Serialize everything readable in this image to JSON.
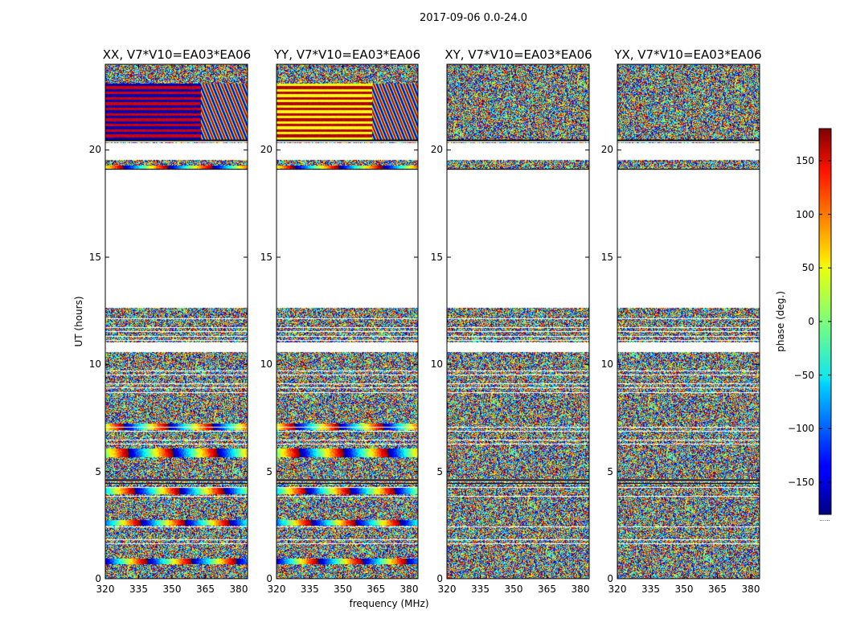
{
  "figure": {
    "suptitle": "2017-09-06 0.0-24.0",
    "colorbar_extra": "......"
  },
  "chart_data": [
    {
      "type": "heatmap",
      "title": "XX, V7*V10=EA03*EA06",
      "xlabel": "frequency (MHz)",
      "ylabel": "UT (hours)",
      "xlim": [
        320,
        384
      ],
      "ylim": [
        0,
        24
      ],
      "xticks": [
        "320",
        "335",
        "350",
        "365",
        "380"
      ],
      "yticks": [
        "0",
        "5",
        "10",
        "15",
        "20"
      ],
      "value_unit": "phase (deg.)",
      "vmin": -180,
      "vmax": 180,
      "data_gaps_hours": [
        [
          12.65,
          19.1
        ],
        [
          19.55,
          20.35
        ],
        [
          20.4,
          20.48
        ],
        [
          10.6,
          11.05
        ],
        [
          4.55,
          4.65
        ]
      ],
      "coherent_phase_bands_hours": [
        [
          0.7,
          0.95
        ],
        [
          2.5,
          2.75
        ],
        [
          3.95,
          4.25
        ],
        [
          5.7,
          6.1
        ],
        [
          6.95,
          7.25
        ],
        [
          10.6,
          10.8
        ],
        [
          19.15,
          19.3
        ]
      ],
      "late_block": {
        "range_hours": [
          20.5,
          23.1
        ],
        "low_freq_phase_deg": [
          -160,
          150
        ],
        "high_freq_pattern": "fringes"
      }
    },
    {
      "type": "heatmap",
      "title": "YY, V7*V10=EA03*EA06",
      "xlabel": "frequency (MHz)",
      "ylabel": "UT (hours)",
      "xlim": [
        320,
        384
      ],
      "ylim": [
        0,
        24
      ],
      "xticks": [
        "320",
        "335",
        "350",
        "365",
        "380"
      ],
      "yticks": [
        "0",
        "5",
        "10",
        "15",
        "20"
      ],
      "value_unit": "phase (deg.)",
      "vmin": -180,
      "vmax": 180,
      "data_gaps_hours": [
        [
          12.65,
          19.1
        ],
        [
          19.55,
          20.35
        ],
        [
          20.4,
          20.48
        ],
        [
          10.6,
          11.05
        ],
        [
          4.55,
          4.65
        ]
      ],
      "coherent_phase_bands_hours": [
        [
          0.7,
          0.95
        ],
        [
          2.5,
          2.75
        ],
        [
          3.95,
          4.25
        ],
        [
          5.7,
          6.1
        ],
        [
          6.95,
          7.25
        ],
        [
          10.6,
          10.8
        ],
        [
          19.15,
          19.3
        ]
      ],
      "late_block": {
        "range_hours": [
          20.5,
          23.1
        ],
        "low_freq_phase_deg": [
          40,
          160
        ],
        "high_freq_pattern": "fringes"
      }
    },
    {
      "type": "heatmap",
      "title": "XY, V7*V10=EA03*EA06",
      "xlabel": "frequency (MHz)",
      "ylabel": "UT (hours)",
      "xlim": [
        320,
        384
      ],
      "ylim": [
        0,
        24
      ],
      "xticks": [
        "320",
        "335",
        "350",
        "365",
        "380"
      ],
      "yticks": [
        "0",
        "5",
        "10",
        "15",
        "20"
      ],
      "value_unit": "phase (deg.)",
      "vmin": -180,
      "vmax": 180,
      "data_gaps_hours": [
        [
          12.65,
          19.1
        ],
        [
          19.55,
          20.35
        ],
        [
          20.4,
          20.48
        ],
        [
          10.6,
          11.05
        ],
        [
          4.55,
          4.65
        ]
      ],
      "coherent_phase_bands_hours": [],
      "late_block": {
        "range_hours": [
          20.5,
          23.1
        ],
        "low_freq_phase_deg": [],
        "high_freq_pattern": "noise"
      }
    },
    {
      "type": "heatmap",
      "title": "YX, V7*V10=EA03*EA06",
      "xlabel": "frequency (MHz)",
      "ylabel": "UT (hours)",
      "xlim": [
        320,
        384
      ],
      "ylim": [
        0,
        24
      ],
      "xticks": [
        "320",
        "335",
        "350",
        "365",
        "380"
      ],
      "yticks": [
        "0",
        "5",
        "10",
        "15",
        "20"
      ],
      "value_unit": "phase (deg.)",
      "vmin": -180,
      "vmax": 180,
      "data_gaps_hours": [
        [
          12.65,
          19.1
        ],
        [
          19.55,
          20.35
        ],
        [
          20.4,
          20.48
        ],
        [
          10.6,
          11.05
        ],
        [
          4.55,
          4.65
        ]
      ],
      "coherent_phase_bands_hours": [],
      "late_block": {
        "range_hours": [
          20.5,
          23.1
        ],
        "low_freq_phase_deg": [],
        "high_freq_pattern": "noise"
      }
    }
  ],
  "colorbar": {
    "label": "phase (deg.)",
    "range": [
      -180,
      180
    ],
    "ticks": [
      "150",
      "100",
      "50",
      "0",
      "−50",
      "−100",
      "−150"
    ],
    "tick_values": [
      150,
      100,
      50,
      0,
      -50,
      -100,
      -150
    ],
    "colormap": "jet"
  }
}
